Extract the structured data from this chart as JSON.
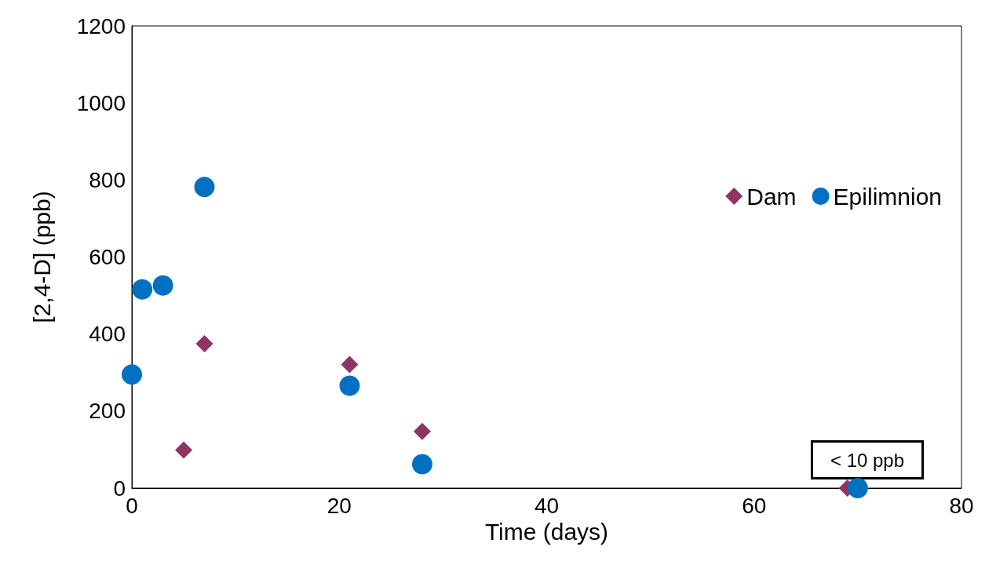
{
  "chart_data": {
    "type": "scatter",
    "xlabel": "Time (days)",
    "ylabel": "[2,4-D] (ppb)",
    "xlim": [
      0,
      80
    ],
    "xticks": [
      0,
      20,
      40,
      60,
      80
    ],
    "ylim": [
      0,
      1200
    ],
    "yticks": [
      0,
      200,
      400,
      600,
      800,
      1000,
      1200
    ],
    "grid": false,
    "legend": "right",
    "series": [
      {
        "name": "Dam",
        "color": "#8e3563",
        "marker": "diamond",
        "x": [
          5,
          7,
          21,
          28,
          69
        ],
        "values": [
          99,
          375,
          321,
          147,
          0
        ]
      },
      {
        "name": "Epilimnion",
        "color": "#0070c0",
        "marker": "circle",
        "x": [
          0,
          1,
          3,
          7,
          21,
          28,
          70
        ],
        "values": [
          295,
          516,
          526,
          782,
          266,
          62,
          0
        ]
      }
    ],
    "annotations": [
      "< 10 ppb"
    ]
  }
}
